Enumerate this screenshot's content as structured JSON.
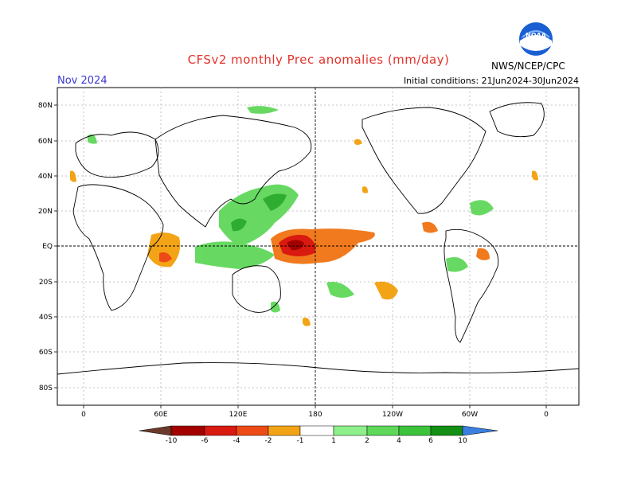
{
  "header": {
    "title": "CFSv2 monthly Prec anomalies (mm/day)",
    "valid_month": "Nov 2024",
    "initial_conditions": "Initial conditions: 21Jun2024-30Jun2024",
    "agency": "NWS/NCEP/CPC",
    "logo_text": "NOAA"
  },
  "axes": {
    "lat_labels": [
      "80N",
      "60N",
      "40N",
      "20N",
      "EQ",
      "20S",
      "40S",
      "60S",
      "80S"
    ],
    "lon_labels": [
      "0",
      "60E",
      "120E",
      "180",
      "120W",
      "60W",
      "0"
    ]
  },
  "colorbar": {
    "tick_labels": [
      "-10",
      "-6",
      "-4",
      "-2",
      "-1",
      "1",
      "2",
      "4",
      "6",
      "10"
    ],
    "colors": {
      "dry": [
        "#6b3a2a",
        "#a30000",
        "#d91a10",
        "#ee4a17",
        "#f07a1d",
        "#f3a416"
      ],
      "wet": [
        "#8ef08a",
        "#5fd85a",
        "#3cc33b",
        "#23a925",
        "#128f14",
        "#3a7fe0"
      ]
    }
  },
  "map": {
    "positive_color": "#3cc33b",
    "negative_color": "#e8802a",
    "strong_negative_color": "#c51f12"
  }
}
